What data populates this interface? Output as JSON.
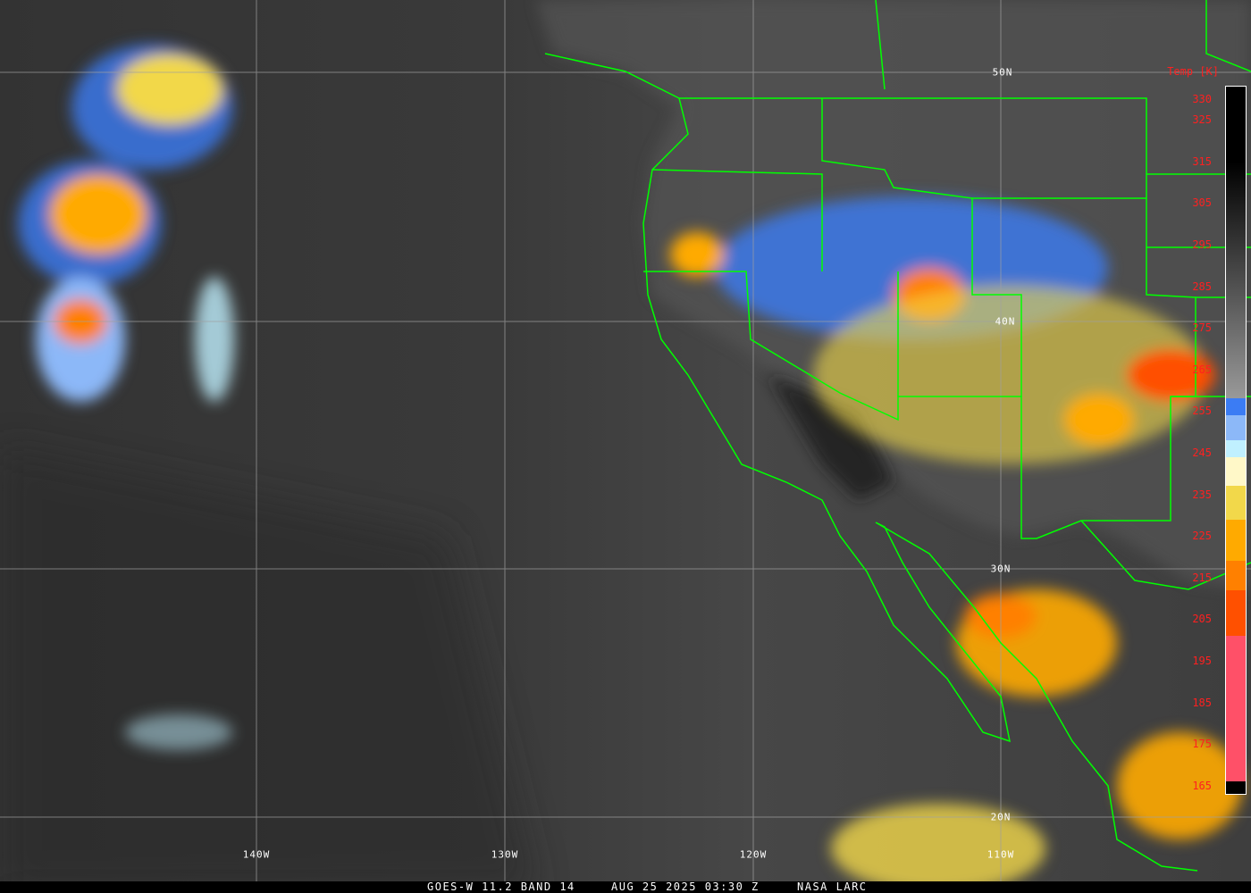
{
  "caption": {
    "satellite": "GOES-W 11.2 BAND 14",
    "datetime": "AUG 25 2025 03:30 Z",
    "source": "NASA LARC"
  },
  "latitude_labels": [
    "50N",
    "40N",
    "30N",
    "20N"
  ],
  "longitude_labels": [
    "140W",
    "130W",
    "120W",
    "110W"
  ],
  "colorbar": {
    "title": "Temp [K]",
    "ticks": [
      330,
      325,
      315,
      305,
      295,
      285,
      275,
      265,
      255,
      245,
      235,
      225,
      215,
      205,
      195,
      185,
      175,
      165
    ],
    "range": [
      163,
      333
    ],
    "stops": [
      {
        "from": 333,
        "to": 315,
        "color": "#000000"
      },
      {
        "from": 315,
        "to": 258,
        "color": "gradient-black-to-gray"
      },
      {
        "from": 258,
        "to": 254,
        "color": "#3b7cf4"
      },
      {
        "from": 254,
        "to": 248,
        "color": "#8cb8f8"
      },
      {
        "from": 248,
        "to": 244,
        "color": "#c0f0ff"
      },
      {
        "from": 244,
        "to": 237,
        "color": "#fff8c8"
      },
      {
        "from": 237,
        "to": 229,
        "color": "#f2d84a"
      },
      {
        "from": 229,
        "to": 219,
        "color": "#ffaa00"
      },
      {
        "from": 219,
        "to": 212,
        "color": "#ff8000"
      },
      {
        "from": 212,
        "to": 201,
        "color": "#ff5000"
      },
      {
        "from": 201,
        "to": 166,
        "color": "#ff5068"
      },
      {
        "from": 166,
        "to": 163,
        "color": "#000000"
      }
    ]
  },
  "colors": {
    "borders": "#00ff00",
    "grid": "#a0a0a0",
    "labels": "#ffffff",
    "ticks": "#ff2020"
  }
}
